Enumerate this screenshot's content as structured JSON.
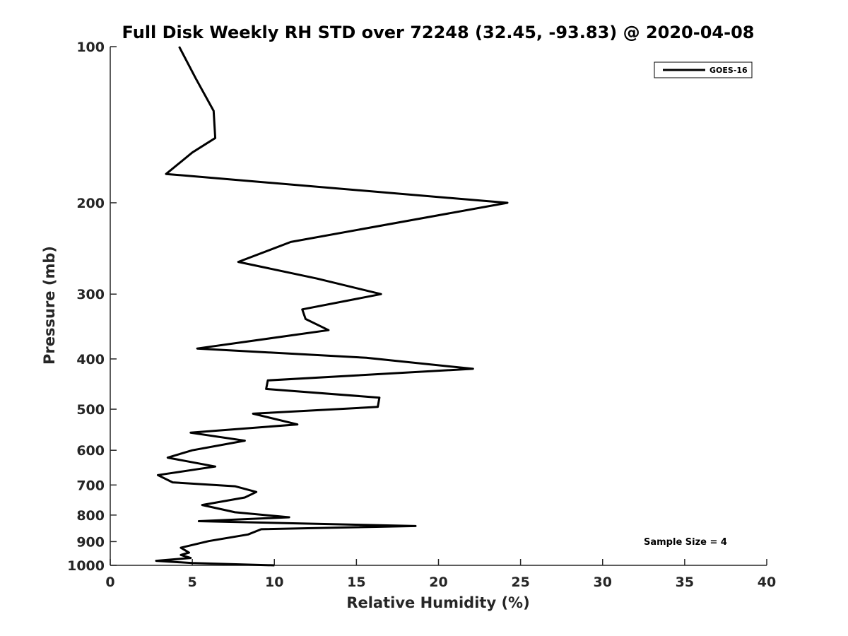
{
  "chart_data": {
    "type": "line",
    "title": "Full Disk Weekly RH STD over 72248 (32.45, -93.83) @ 2020-04-08",
    "xlabel": "Relative Humidity (%)",
    "ylabel": "Pressure (mb)",
    "xlim": [
      0,
      40
    ],
    "ylim": [
      100,
      1000
    ],
    "y_scale": "log",
    "y_reversed": true,
    "x_ticks": [
      0,
      5,
      10,
      15,
      20,
      25,
      30,
      35,
      40
    ],
    "y_ticks": [
      100,
      200,
      300,
      400,
      500,
      600,
      700,
      800,
      900,
      1000
    ],
    "grid": false,
    "legend_position": "top-right",
    "line_color": "#000000",
    "annotation": "Sample Size = 4",
    "series": [
      {
        "name": "GOES-16",
        "x": [
          4.2,
          5.2,
          6.3,
          6.4,
          5.0,
          3.4,
          24.2,
          11.0,
          7.8,
          12.6,
          16.5,
          11.7,
          11.9,
          13.3,
          5.3,
          15.6,
          22.1,
          9.6,
          9.5,
          16.4,
          16.3,
          8.7,
          11.4,
          4.9,
          8.2,
          5.0,
          3.5,
          6.4,
          2.9,
          3.8,
          7.6,
          8.9,
          8.2,
          5.6,
          7.6,
          10.9,
          5.4,
          18.6,
          9.2,
          8.4,
          6.0,
          4.3,
          4.8,
          4.3,
          4.9,
          2.8,
          5.0,
          10.0
        ],
        "y": [
          100,
          115,
          133,
          150,
          160,
          176,
          200,
          238,
          260,
          280,
          300,
          321,
          335,
          352,
          382,
          398,
          418,
          440,
          457,
          475,
          495,
          510,
          535,
          555,
          575,
          600,
          620,
          645,
          670,
          692,
          704,
          722,
          740,
          765,
          790,
          808,
          822,
          840,
          852,
          872,
          898,
          925,
          945,
          955,
          968,
          980,
          990,
          1000
        ]
      }
    ]
  }
}
